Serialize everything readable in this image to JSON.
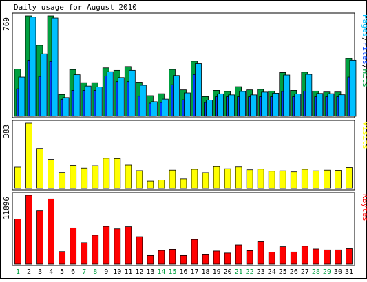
{
  "chart_data": {
    "title": "Daily usage for August 2010",
    "categories": [
      "1",
      "2",
      "3",
      "4",
      "5",
      "6",
      "7",
      "8",
      "9",
      "10",
      "11",
      "12",
      "13",
      "14",
      "15",
      "16",
      "17",
      "18",
      "19",
      "20",
      "21",
      "22",
      "23",
      "24",
      "25",
      "26",
      "27",
      "28",
      "29",
      "30",
      "31"
    ],
    "weekend_days": [
      "1",
      "7",
      "8",
      "14",
      "15",
      "21",
      "22",
      "28",
      "29"
    ],
    "colors": {
      "hits": "#00a040",
      "files": "#0040ff",
      "pages": "#00c0ff",
      "visits": "#ffff00",
      "kbytes": "#ff0000",
      "weekend_label": "#00a040"
    },
    "panels": [
      {
        "type": "bar",
        "max_label": "769",
        "ymax": 769,
        "side_label": {
          "prefix": "Pages",
          "files": "Files",
          "hits": "Hits",
          "sep": "/"
        },
        "series": [
          {
            "name": "Hits",
            "color": "#00a040",
            "values": [
              360,
              769,
              543,
              769,
              167,
              357,
              257,
              257,
              370,
              351,
              380,
              261,
              158,
              173,
              358,
              202,
              422,
              151,
              198,
              190,
              226,
              202,
              206,
              193,
              335,
              198,
              338,
              193,
              186,
              186,
              442
            ]
          },
          {
            "name": "Files",
            "color": "#0040ff",
            "values": [
              210,
              430,
              305,
              420,
              130,
              198,
              198,
              198,
              308,
              265,
              265,
              154,
              100,
              105,
              241,
              126,
              320,
              105,
              150,
              150,
              150,
              150,
              150,
              150,
              190,
              150,
              193,
              150,
              150,
              150,
              300
            ]
          },
          {
            "name": "Pages",
            "color": "#00c0ff",
            "values": [
              300,
              760,
              478,
              753,
              143,
              318,
              231,
              224,
              341,
              296,
              351,
              237,
              111,
              131,
              312,
              179,
              403,
              124,
              172,
              164,
              190,
              164,
              185,
              177,
              316,
              171,
              321,
              175,
              173,
              165,
              430
            ]
          }
        ]
      },
      {
        "type": "bar",
        "max_label": "383",
        "ymax": 383,
        "side_label": {
          "text": "Visits"
        },
        "series": [
          {
            "name": "Visits",
            "color": "#ffff00",
            "values": [
              125,
              383,
              235,
              171,
              94,
              135,
              120,
              133,
              178,
              176,
              137,
              105,
              44,
              50,
              108,
              57,
              113,
              93,
              128,
              116,
              126,
              110,
              114,
              102,
              104,
              98,
              113,
              104,
              108,
              107,
              123
            ]
          }
        ]
      },
      {
        "type": "bar",
        "max_label": "11896",
        "ymax": 11896,
        "side_label": {
          "text": "KBytes"
        },
        "series": [
          {
            "name": "KBytes",
            "color": "#ff0000",
            "values": [
              7780,
              11896,
              9200,
              11260,
              2170,
              6260,
              3700,
              5010,
              6530,
              6100,
              6470,
              4750,
              1500,
              2370,
              2570,
              1500,
              4260,
              1620,
              2270,
              1920,
              3330,
              2330,
              3870,
              2080,
              3020,
              2100,
              3120,
              2620,
              2460,
              2460,
              2680
            ]
          }
        ]
      }
    ]
  }
}
